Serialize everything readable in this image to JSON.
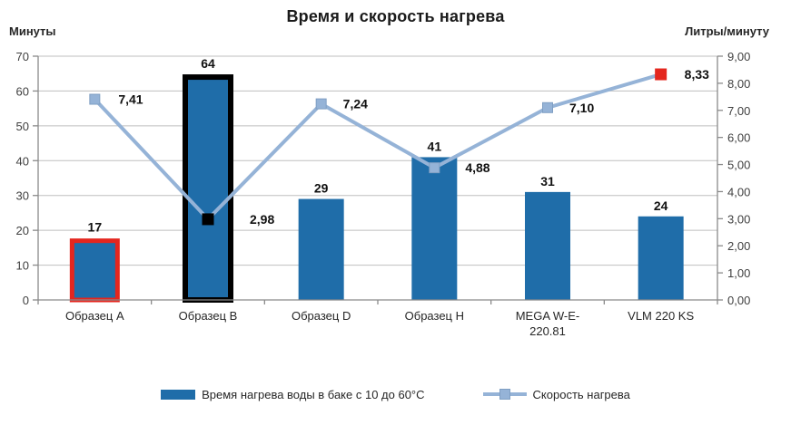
{
  "title": "Время и скорость нагрева",
  "left_axis": {
    "label": "Минуты",
    "min": 0,
    "max": 70,
    "tick_labels": [
      "0",
      "10",
      "20",
      "30",
      "40",
      "50",
      "60",
      "70"
    ]
  },
  "right_axis": {
    "label": "Литры/минуту",
    "min": 0,
    "max": 9,
    "tick_labels": [
      "0,00",
      "1,00",
      "2,00",
      "3,00",
      "4,00",
      "5,00",
      "6,00",
      "7,00",
      "8,00",
      "9,00"
    ]
  },
  "chart_data": {
    "type": "bar+line combo",
    "title": "Время и скорость нагрева",
    "categories": [
      "Образец A",
      "Образец B",
      "Образец D",
      "Образец H",
      "MEGA W-E-220.81",
      "VLM 220 KS"
    ],
    "category_label_lines": [
      [
        "Образец A"
      ],
      [
        "Образец B"
      ],
      [
        "Образец D"
      ],
      [
        "Образец H"
      ],
      [
        "MEGA W-E-",
        "220.81"
      ],
      [
        "VLM 220 KS"
      ]
    ],
    "grid": true,
    "legend_position": "bottom",
    "ylim_left": [
      0,
      70
    ],
    "ylim_right": [
      0,
      9
    ],
    "series": [
      {
        "name": "Время нагрева воды в баке с 10 до 60°С",
        "type": "bar",
        "axis": "left",
        "values": [
          17,
          64,
          29,
          41,
          31,
          24
        ],
        "value_labels": [
          "17",
          "64",
          "29",
          "41",
          "31",
          "24"
        ],
        "bar_outlines": {
          "0": "red",
          "1": "black"
        }
      },
      {
        "name": "Скорость нагрева",
        "type": "line",
        "axis": "right",
        "values": [
          7.41,
          2.98,
          7.24,
          4.88,
          7.1,
          8.33
        ],
        "point_labels": [
          "7,41",
          "2,98",
          "7,24",
          "4,88",
          "7,10",
          "8,33"
        ],
        "marker_colors": {
          "1": "black",
          "5": "red"
        }
      }
    ]
  },
  "legend": {
    "bar_label": "Время нагрева воды в баке с 10 до 60°С",
    "line_label": "Скорость нагрева"
  },
  "colors": {
    "bar": "#1f6da9",
    "line": "#95b3d7",
    "marker": "#95b3d7",
    "marker_border": "#7f9fc3",
    "red": "#e4261e",
    "black": "#000000",
    "grid": "#bfbfbf",
    "axis": "#8a8a8a"
  }
}
